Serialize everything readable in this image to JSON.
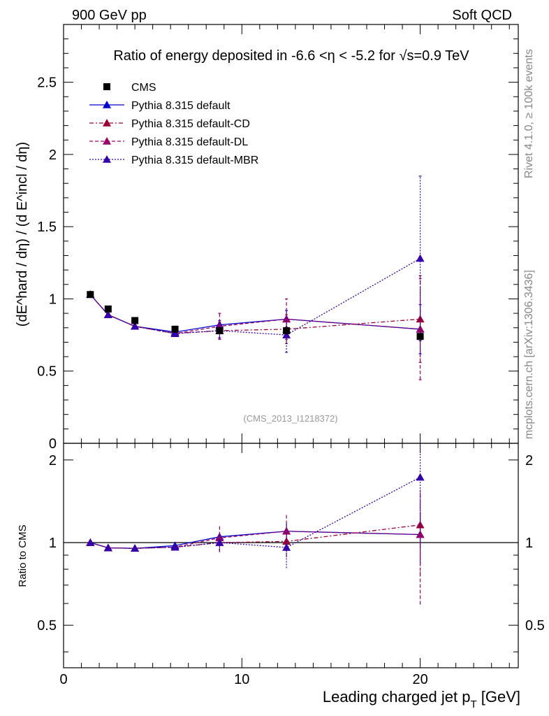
{
  "header": {
    "left": "900 GeV pp",
    "right": "Soft QCD"
  },
  "side": {
    "rivet": "Rivet 4.1.0, ≥ 100k events",
    "mcplots": "mcplots.cern.ch [arXiv:1306.3436]"
  },
  "chart_data": {
    "type": "line",
    "title": "Ratio of energy deposited in -6.6 <η < -5.2 for √s=0.9 TeV",
    "watermark": "(CMS_2013_I1218372)",
    "xlabel": "Leading charged jet p",
    "xlabel_sub": "T",
    "xlabel_unit": " [GeV]",
    "ylabel": "(dE^hard / dη) / (d E^incl / dη)",
    "ratio_ylabel": "Ratio to CMS",
    "xlim": [
      0,
      25.5
    ],
    "ylim": [
      0,
      2.9
    ],
    "ratio_ylim": [
      0.35,
      2.3
    ],
    "x_ticks": [
      "0",
      "10",
      "20"
    ],
    "y_ticks": [
      "0",
      "0.5",
      "1",
      "1.5",
      "2",
      "2.5"
    ],
    "ratio_ticks": [
      "0.5",
      "1",
      "2"
    ],
    "x": [
      1.5,
      2.5,
      4.0,
      6.25,
      8.75,
      12.5,
      20.0
    ],
    "data": {
      "name": "CMS",
      "values": [
        1.03,
        0.93,
        0.85,
        0.79,
        0.78,
        0.78,
        0.74
      ],
      "color": "#000000"
    },
    "series": [
      {
        "name": "Pythia 8.315 default",
        "values": [
          1.03,
          0.89,
          0.81,
          0.77,
          0.82,
          0.86,
          0.79
        ],
        "errors": [
          0.005,
          0.005,
          0.005,
          0.01,
          0.03,
          0.06,
          0.17
        ],
        "ratio": [
          1.0,
          0.957,
          0.953,
          0.975,
          1.05,
          1.1,
          1.07
        ],
        "color": "#0000cc",
        "dash": "none"
      },
      {
        "name": "Pythia 8.315 default-CD",
        "values": [
          1.03,
          0.89,
          0.81,
          0.76,
          0.78,
          0.79,
          0.86
        ],
        "errors": [
          0.005,
          0.005,
          0.005,
          0.01,
          0.06,
          0.1,
          0.3
        ],
        "ratio": [
          1.0,
          0.957,
          0.953,
          0.962,
          1.0,
          1.01,
          1.16
        ],
        "color": "#990033",
        "dash": "6,3,2,3"
      },
      {
        "name": "Pythia 8.315 default-DL",
        "values": [
          1.03,
          0.89,
          0.81,
          0.76,
          0.81,
          0.86,
          0.79
        ],
        "errors": [
          0.005,
          0.005,
          0.005,
          0.02,
          0.09,
          0.14,
          0.35
        ],
        "ratio": [
          1.0,
          0.957,
          0.953,
          0.962,
          1.04,
          1.1,
          1.07
        ],
        "color": "#990066",
        "dash": "5,3"
      },
      {
        "name": "Pythia 8.315 default-MBR",
        "values": [
          1.03,
          0.89,
          0.81,
          0.76,
          0.78,
          0.75,
          1.28
        ],
        "errors": [
          0.005,
          0.005,
          0.005,
          0.01,
          0.05,
          0.12,
          0.57
        ],
        "ratio": [
          1.0,
          0.957,
          0.953,
          0.962,
          1.0,
          0.96,
          1.73
        ],
        "color": "#3300aa",
        "dash": "2,2"
      }
    ]
  }
}
